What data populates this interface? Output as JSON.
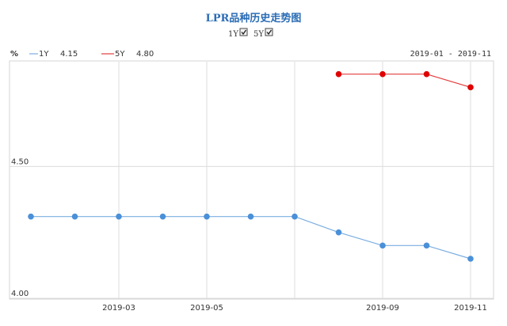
{
  "chart_data": {
    "type": "line",
    "title": "LPR品种历史走势图",
    "ylabel": "%",
    "range_label": "2019-01 - 2019-11",
    "toggles": [
      {
        "label": "1Y",
        "checked": true
      },
      {
        "label": "5Y",
        "checked": true
      }
    ],
    "legend": [
      {
        "label": "1Y",
        "value": "4.15",
        "color": "#7aaee0"
      },
      {
        "label": "5Y",
        "value": "4.80",
        "color": "#e43b3b"
      }
    ],
    "x": [
      "2019-01",
      "2019-02",
      "2019-03",
      "2019-04",
      "2019-05",
      "2019-06",
      "2019-07",
      "2019-08",
      "2019-09",
      "2019-10",
      "2019-11"
    ],
    "x_tick_labels": [
      "2019-03",
      "2019-05",
      "2019-09",
      "2019-11"
    ],
    "ylim": [
      4.0,
      4.9
    ],
    "y_tick_labels": [
      "4.00",
      "4.50"
    ],
    "grid": true,
    "series": [
      {
        "name": "1Y",
        "color": "#4a90d9",
        "line_color": "#7aaee0",
        "values": [
          4.31,
          4.31,
          4.31,
          4.31,
          4.31,
          4.31,
          4.31,
          4.25,
          4.2,
          4.2,
          4.15
        ]
      },
      {
        "name": "5Y",
        "color": "#e00000",
        "line_color": "#e43b3b",
        "values": [
          null,
          null,
          null,
          null,
          null,
          null,
          null,
          4.85,
          4.85,
          4.85,
          4.8
        ]
      }
    ]
  }
}
